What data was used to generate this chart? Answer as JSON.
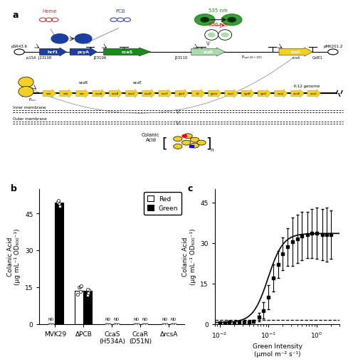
{
  "panel_b": {
    "categories": [
      "MVK29",
      "ΔPCB",
      "CcaS\n(H534A)",
      "CcaR\n(D51N)",
      "ΔrcsA"
    ],
    "red_values": [
      0,
      13.5,
      0,
      0,
      0
    ],
    "green_values": [
      49.5,
      13.5,
      0,
      0,
      0
    ],
    "scatter_red": [
      [],
      [
        12.0,
        13.2,
        14.8,
        15.2,
        15.5
      ],
      [],
      [],
      []
    ],
    "scatter_green": [
      [
        48.0,
        49.0,
        49.8,
        50.3
      ],
      [
        11.8,
        12.5,
        13.8,
        14.2
      ],
      [],
      [],
      []
    ],
    "nd_red": [
      true,
      false,
      true,
      true,
      true
    ],
    "nd_green": [
      false,
      false,
      true,
      true,
      true
    ],
    "ylim": [
      0,
      55
    ],
    "yticks": [
      0,
      15,
      30,
      45
    ],
    "ylabel": "Colanic Acid\n(μg mL⁻¹ OD₆₀₀⁻¹)"
  },
  "panel_c": {
    "x_data": [
      0.01,
      0.013,
      0.016,
      0.02,
      0.025,
      0.032,
      0.04,
      0.05,
      0.065,
      0.08,
      0.1,
      0.13,
      0.16,
      0.2,
      0.25,
      0.32,
      0.4,
      0.5,
      0.65,
      0.8,
      1.0,
      1.3,
      1.6,
      2.0
    ],
    "y_mean": [
      0.5,
      0.5,
      0.6,
      0.5,
      0.6,
      0.7,
      0.8,
      1.0,
      2.5,
      5.0,
      10.0,
      17.0,
      22.0,
      26.0,
      28.5,
      30.5,
      31.5,
      32.5,
      33.0,
      33.5,
      33.5,
      33.0,
      33.0,
      33.0
    ],
    "y_err": [
      0.2,
      0.2,
      0.3,
      0.3,
      0.3,
      0.3,
      0.4,
      0.6,
      1.5,
      3.0,
      4.5,
      5.0,
      5.0,
      6.0,
      7.0,
      9.0,
      9.0,
      9.0,
      8.5,
      9.0,
      9.5,
      9.5,
      10.0,
      9.0
    ],
    "hill_K": 0.1,
    "hill_n": 2.8,
    "hill_ymax": 33.5,
    "hill_ymin": 0.5,
    "dashed_y": 1.5,
    "xlim": [
      0.008,
      3.0
    ],
    "ylim": [
      0,
      50
    ],
    "yticks": [
      0,
      15,
      30,
      45
    ],
    "ylabel": "Colanic Acid\n(μg mL⁻¹ OD₆₀₀⁻¹)",
    "xlabel": "Green Intensity\n(μmol m⁻² s⁻¹)"
  },
  "colors": {
    "blue_dark": "#1a3fa0",
    "green_dark": "#1a8a1a",
    "yellow": "#f5d020",
    "gold": "#f0c000",
    "red_rings": "#cc3333",
    "blue_rings": "#3344cc",
    "white": "#ffffff",
    "black": "#000000",
    "gray_bg": "#f8f8f8"
  }
}
